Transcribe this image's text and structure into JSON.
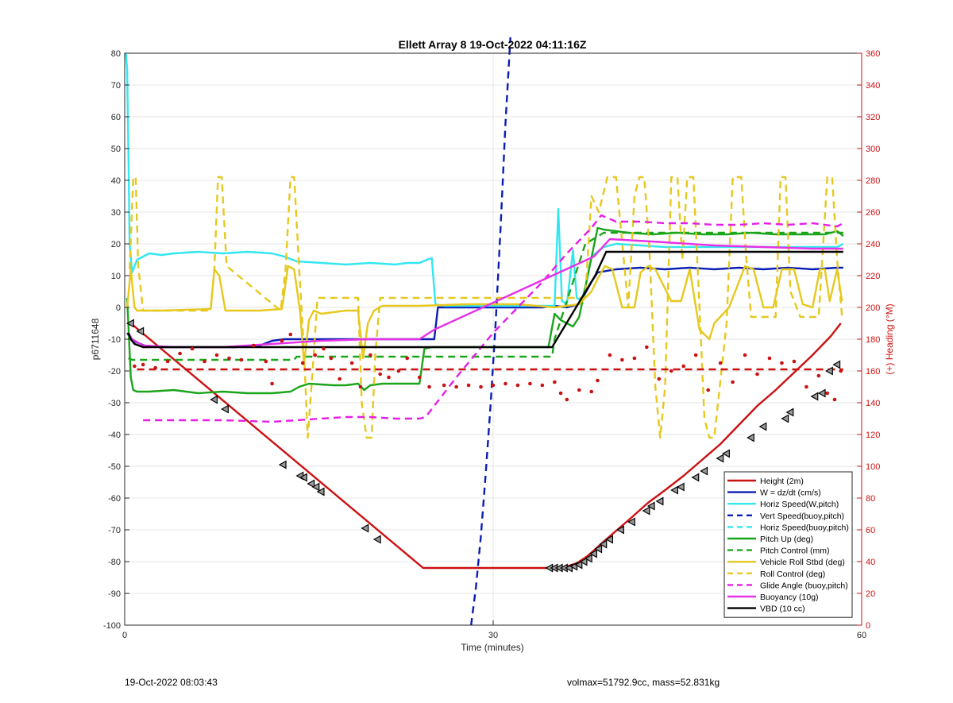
{
  "chart_data": {
    "type": "line",
    "title": "Ellett Array 8 19-Oct-2022 04:11:16Z",
    "xlabel": "Time (minutes)",
    "ylabel": "p6711648",
    "y2label": "(+) Heading (°M)",
    "xlim": [
      0,
      60
    ],
    "ylim": [
      -100,
      80
    ],
    "y2lim": [
      0,
      360
    ],
    "xticks": [
      0,
      30,
      60
    ],
    "yticks": [
      80,
      70,
      60,
      50,
      40,
      30,
      20,
      10,
      0,
      -10,
      -20,
      -30,
      -40,
      -50,
      -60,
      -70,
      -80,
      -90,
      -100
    ],
    "y2ticks": [
      360,
      340,
      320,
      300,
      280,
      260,
      240,
      220,
      200,
      180,
      160,
      140,
      120,
      100,
      80,
      60,
      40,
      20,
      0
    ],
    "grid": true,
    "legend_position": "bottom-right",
    "colors": {
      "height": "#cc1111",
      "w": "#0a1eb4",
      "horiz": "#33e6f0",
      "pitch": "#1aa51a",
      "roll": "#e6c81e",
      "glide": "#e61ee6",
      "buoyancy": "#e632e6",
      "vbd": "#000000",
      "right_axis": "#cc1111"
    },
    "series": [
      {
        "name": "Height (2m)",
        "style": "solid",
        "color": "#cc1111",
        "axis": "left",
        "x": [
          0.5,
          24.3,
          34.4,
          35.8,
          36.8,
          37.6,
          38.2,
          38.9,
          39.8,
          41.3,
          42.6,
          44.0,
          45.5,
          47.0,
          48.5,
          50.0,
          51.5,
          53.0,
          54.5,
          56.0,
          57.5,
          58.3
        ],
        "y": [
          -5,
          -82,
          -82,
          -81.8,
          -80.5,
          -78.5,
          -76.5,
          -74,
          -71,
          -66,
          -61.5,
          -57.5,
          -53,
          -48,
          -43,
          -37,
          -31,
          -26,
          -20.5,
          -15,
          -9,
          -5
        ]
      },
      {
        "name": "W = dz/dt (cm/s)",
        "style": "solid",
        "color": "#0a1eb4",
        "axis": "left",
        "x": [
          0.2,
          0.6,
          1.0,
          1.6,
          3,
          6,
          9,
          11,
          12,
          13,
          15,
          18,
          20.5,
          22,
          23.5,
          24.3,
          25.2,
          25.5,
          26,
          30,
          34,
          35,
          36,
          37,
          38,
          38.5,
          40,
          42,
          44,
          46,
          48,
          50,
          52,
          54,
          56,
          58,
          58.5
        ],
        "y": [
          -8,
          -10.5,
          -11,
          -12,
          -12.5,
          -12.5,
          -12.5,
          -12,
          -10.5,
          -10,
          -10,
          -10,
          -10,
          -10,
          -10,
          -10,
          -10,
          0,
          0,
          0,
          0,
          0.5,
          0,
          1,
          8,
          11,
          12,
          12.5,
          12,
          12.5,
          12,
          12.5,
          12,
          12.5,
          12,
          12.5,
          12.5
        ]
      },
      {
        "name": "Horiz Speed(W,pitch)",
        "style": "solid",
        "color": "#33e6f0",
        "axis": "left",
        "x": [
          0.1,
          0.2,
          0.3,
          0.4,
          0.6,
          0.8,
          1,
          1.5,
          2,
          3,
          4,
          6,
          8,
          10,
          12,
          13,
          14,
          16,
          18,
          20,
          22,
          23,
          24,
          24.6,
          25.0,
          25.3,
          26,
          30,
          34,
          35,
          35.3,
          35.6,
          36,
          36.5,
          36.8,
          37.2,
          37.6,
          38,
          39,
          40,
          42,
          44,
          46,
          48,
          50,
          52,
          54,
          56,
          58,
          58.5
        ],
        "y": [
          80,
          75,
          50,
          20,
          11,
          13,
          15,
          16,
          17,
          16.5,
          17,
          17.5,
          17,
          17.5,
          17,
          16,
          14.5,
          14,
          13.5,
          14,
          13.5,
          14,
          14,
          15,
          15.5,
          1,
          0.5,
          0.5,
          0.5,
          0.5,
          31,
          2,
          1,
          18,
          3,
          2,
          8,
          16,
          19,
          20,
          19.5,
          19,
          19,
          19,
          19,
          19,
          19,
          19,
          19,
          20
        ]
      },
      {
        "name": "Vert Speed(buoy,pitch)",
        "style": "dash",
        "color": "#0a1eb4",
        "axis": "left",
        "x": [
          28.2,
          28.6,
          29.0,
          29.4,
          29.8,
          30.2,
          30.6,
          31.0,
          31.4
        ],
        "y": [
          -100,
          -88,
          -72,
          -52,
          -30,
          -5,
          25,
          58,
          85
        ]
      },
      {
        "name": "Horiz Speed(buoy,pitch)",
        "style": "dash",
        "color": "#33e6f0",
        "axis": "left",
        "x": [],
        "y": []
      },
      {
        "name": "Pitch Up (deg)",
        "style": "solid",
        "color": "#1aa51a",
        "axis": "left",
        "x": [
          0.2,
          0.5,
          0.7,
          1,
          2,
          4,
          6,
          8,
          10,
          12,
          13.5,
          14.2,
          15,
          17,
          18,
          19,
          19.5,
          20,
          21,
          22,
          23,
          24,
          24.4,
          25,
          30,
          34.5,
          35,
          35.5,
          36.5,
          37,
          38.5,
          39,
          41,
          43,
          45,
          47,
          49,
          51,
          53,
          55,
          57,
          58,
          58.5
        ],
        "y": [
          3,
          -22,
          -26,
          -26.5,
          -26.5,
          -26,
          -27,
          -26.5,
          -27,
          -27,
          -26.5,
          -25,
          -24,
          -24.5,
          -24.5,
          -24,
          -26,
          -24.5,
          -24,
          -24,
          -24,
          -24,
          -13,
          -12.5,
          -12.5,
          -12.5,
          -2,
          -4,
          -6,
          -3,
          25,
          24.5,
          23.5,
          23,
          23.5,
          23,
          23,
          23.5,
          23,
          23,
          23,
          24,
          22.5
        ]
      },
      {
        "name": "Pitch Control (mm)",
        "style": "dash",
        "color": "#1aa51a",
        "axis": "left",
        "x": [
          0.3,
          0.6,
          3,
          8,
          13.8,
          14,
          24.2,
          24.4,
          34.8,
          35,
          37.5,
          39,
          58.5
        ],
        "y": [
          -16,
          -16.5,
          -16.5,
          -16.5,
          -16.5,
          -15.5,
          -15.5,
          -15.5,
          -15.5,
          -10,
          20,
          23.5,
          23.5
        ]
      },
      {
        "name": "Vehicle Roll Stbd (deg)",
        "style": "solid",
        "color": "#e6c81e",
        "axis": "left",
        "x": [
          0.2,
          0.5,
          0.8,
          1,
          1.4,
          3,
          7,
          7.3,
          7.7,
          8.2,
          8.5,
          11,
          12.8,
          13.3,
          13.8,
          14.3,
          14.6,
          15,
          15.4,
          16,
          18,
          19,
          19.4,
          19.8,
          20.3,
          21,
          24,
          28,
          32,
          35,
          36,
          37,
          38,
          38.5,
          39.1,
          39.7,
          40.5,
          41.5,
          42,
          42.6,
          43.2,
          44.5,
          45.3,
          46,
          46.8,
          47.6,
          48,
          49.2,
          50.5,
          51.2,
          52,
          52.8,
          53.5,
          54.5,
          55.2,
          56,
          56.6,
          57,
          57.4,
          58.0,
          58.4
        ],
        "y": [
          0,
          12,
          0,
          -1,
          -1,
          -1,
          -0.5,
          12,
          10,
          -1,
          -1,
          -1,
          -0.5,
          13,
          12,
          -2,
          -18,
          -4,
          -1,
          -2,
          -1,
          -1,
          -16,
          -5,
          -1,
          0.5,
          0.5,
          1,
          1,
          0,
          0.5,
          1,
          5,
          9,
          13,
          12,
          0,
          0,
          11,
          13,
          12,
          2,
          2,
          12,
          -7,
          -10,
          -5,
          0,
          13,
          12,
          0,
          0,
          12,
          12,
          1,
          0,
          12,
          12,
          2,
          12,
          2
        ]
      },
      {
        "name": "Roll Control (deg)",
        "style": "dash",
        "color": "#e6c81e",
        "axis": "left",
        "x": [
          0.4,
          0.7,
          0.9,
          1.1,
          1.5,
          3,
          7.0,
          7.3,
          7.6,
          7.9,
          8.3,
          12.7,
          13.1,
          13.5,
          13.8,
          14.2,
          14.6,
          14.9,
          15.3,
          15.7,
          19.0,
          19.3,
          19.7,
          20.1,
          20.4,
          20.8,
          34,
          37.5,
          38.0,
          38.6,
          39.3,
          40,
          41,
          41.5,
          41.9,
          42.3,
          42.7,
          43.2,
          43.6,
          44.0,
          44.5,
          45.0,
          45.4,
          45.8,
          46.3,
          46.8,
          47.2,
          47.6,
          48.0,
          49,
          49.5,
          50.2,
          50.6,
          51.0,
          52,
          53,
          53.4,
          53.8,
          54.2,
          55,
          56.5,
          57.2,
          57.6,
          58.0,
          58.4
        ],
        "y": [
          12,
          41,
          41,
          13,
          -1,
          -1,
          -1,
          12,
          41,
          41,
          13,
          -1,
          12,
          41,
          41,
          13,
          -14,
          -41,
          -20,
          3,
          3,
          -30,
          -41,
          -41,
          -15,
          3,
          3,
          3,
          35,
          30,
          41,
          41,
          0,
          35,
          41,
          41,
          20,
          -25,
          -41,
          -25,
          41,
          41,
          15,
          41,
          41,
          0,
          -35,
          -41,
          -41,
          -5,
          41,
          41,
          16,
          -3,
          -3,
          -3,
          41,
          41,
          5,
          -3,
          -3,
          41,
          41,
          15,
          -3
        ]
      },
      {
        "name": "Glide Angle (buoy,pitch)",
        "style": "dash",
        "color": "#e61ee6",
        "axis": "left",
        "x": [
          1.5,
          4,
          8,
          12,
          16,
          18,
          20,
          22,
          24,
          24.5,
          27,
          30,
          32,
          34,
          36,
          38,
          38.8,
          40,
          42,
          44,
          46,
          48,
          50,
          52,
          54,
          56,
          58,
          58.5
        ],
        "y": [
          -35.5,
          -35.5,
          -35.5,
          -36,
          -35,
          -34.5,
          -34.5,
          -35,
          -35,
          -34.5,
          -22,
          -8,
          0,
          8,
          17,
          25,
          29,
          27,
          27,
          26.5,
          26.5,
          26,
          26,
          26.5,
          26,
          26.5,
          25.5,
          26.5
        ]
      },
      {
        "name": "Buoyancy (10g)",
        "style": "solid",
        "color": "#e632e6",
        "axis": "left",
        "x": [
          0.3,
          0.6,
          1.5,
          4,
          8,
          12,
          16,
          20,
          24,
          25.2,
          38.2,
          39.5,
          44,
          48,
          52,
          56,
          58.5
        ],
        "y": [
          -8,
          -10,
          -12,
          -12.5,
          -12.5,
          -11.5,
          -10.5,
          -10,
          -10,
          -7,
          16,
          21.5,
          20.5,
          19.5,
          19,
          18.5,
          18.5
        ]
      },
      {
        "name": "VBD (10 cc)",
        "style": "solid",
        "color": "#000000",
        "axis": "left",
        "x": [
          0.3,
          0.5,
          0.8,
          1.5,
          10,
          20,
          30,
          34.8,
          38.3,
          39.2,
          58.5
        ],
        "y": [
          -8,
          -10,
          -11.5,
          -12.5,
          -12.5,
          -12.5,
          -12.5,
          -12.5,
          10,
          17.5,
          17.5
        ]
      },
      {
        "style": "dash",
        "color": "#cc1111",
        "axis": "right",
        "x": [
          1,
          10,
          20,
          30,
          40,
          50,
          58.5
        ],
        "y": [
          161,
          161,
          161,
          161,
          161,
          161,
          161
        ]
      },
      {
        "style": "dots",
        "color": "#cc1111",
        "axis": "right",
        "x": [
          0.8,
          1.5,
          2.5,
          3.5,
          4.5,
          5.5,
          6.5,
          7.5,
          8.5,
          9.5,
          10.5,
          11.5,
          12,
          12.8,
          13.5,
          14.5,
          15.5,
          16.2,
          16.8,
          17.5,
          18.5,
          19.2,
          20,
          20.8,
          21.5,
          22.3,
          23,
          24,
          24.8,
          26,
          27,
          28,
          29,
          30,
          31,
          32,
          33,
          34,
          35,
          35.5,
          36,
          37,
          38,
          38.5,
          39.5,
          40.5,
          41.5,
          42.5,
          43.5,
          44.5,
          45.5,
          46.5,
          47.5,
          48.5,
          49.5,
          50.5,
          51.5,
          52.5,
          53.5,
          54.5,
          55.5,
          56.5,
          57.2,
          57.8,
          58.3
        ],
        "y": [
          163,
          164,
          162,
          166,
          171,
          174,
          166,
          170,
          168,
          167,
          176,
          166,
          152,
          179,
          183,
          165,
          170,
          174,
          168,
          155,
          165,
          150,
          170,
          158,
          156,
          160,
          168,
          156,
          150,
          151,
          150,
          151,
          150,
          151,
          152,
          151,
          152,
          151,
          153,
          146,
          142,
          148,
          147,
          154,
          170,
          167,
          168,
          175,
          155,
          160,
          163,
          170,
          148,
          165,
          153,
          170,
          158,
          168,
          165,
          166,
          150,
          157,
          146,
          142,
          160
        ]
      }
    ],
    "markers": {
      "name": "Height (2m)",
      "x": [
        0.5,
        1.3,
        7.3,
        8.2,
        12.9,
        14.3,
        14.6,
        15.2,
        15.6,
        16.0,
        19.6,
        20.6,
        34.6,
        35.0,
        35.4,
        35.8,
        36.2,
        36.6,
        37.0,
        37.4,
        37.8,
        38.2,
        38.6,
        39.0,
        39.5,
        40.4,
        41.3,
        42.5,
        42.9,
        43.6,
        44.8,
        45.3,
        46.5,
        47.2,
        48.5,
        49.0,
        51.0,
        52.0,
        53.8,
        54.2,
        56.2,
        56.8,
        57.4,
        58.0
      ],
      "y": [
        -5,
        -7.5,
        -29,
        -32,
        -49.5,
        -53,
        -53.5,
        -55.5,
        -56.5,
        -58,
        -69.5,
        -73,
        -82,
        -82,
        -82,
        -82,
        -82,
        -81.5,
        -81,
        -80,
        -79,
        -77.5,
        -76,
        -74.5,
        -73,
        -70,
        -67.5,
        -64,
        -62.5,
        -61,
        -57.5,
        -56.5,
        -53.5,
        -51.5,
        -47.5,
        -46,
        -41,
        -37.5,
        -35,
        -33,
        -28,
        -27,
        -20,
        -18
      ]
    }
  },
  "footer": {
    "left": "19-Oct-2022 08:03:43",
    "right": "volmax=51792.9cc, mass=52.831kg"
  }
}
